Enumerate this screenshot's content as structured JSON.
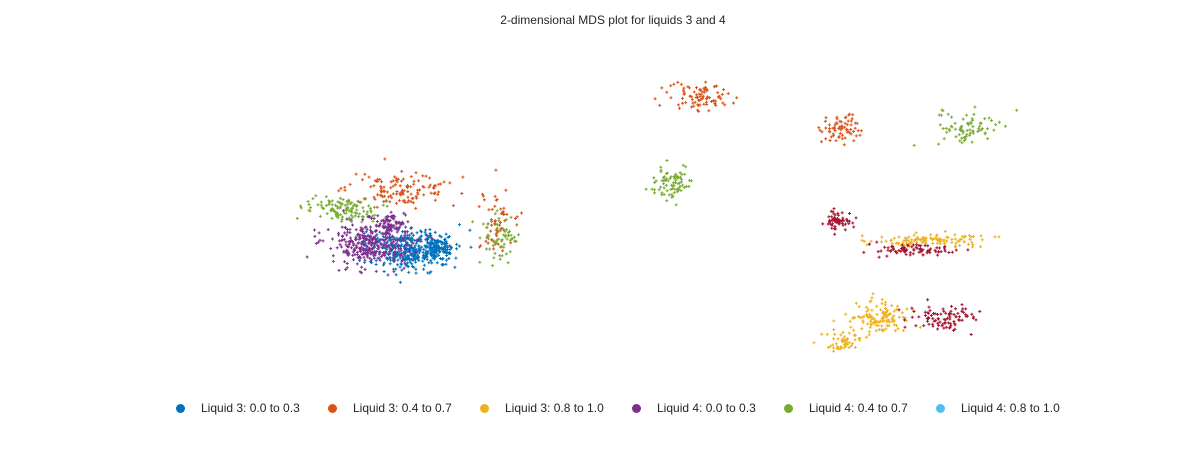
{
  "chart_data": {
    "type": "scatter",
    "title": "2-dimensional MDS plot for liquids 3 and 4",
    "xlabel": "",
    "ylabel": "",
    "grid": false,
    "axes_visible": false,
    "legend_position": "bottom",
    "series": [
      {
        "name": "Liquid 3: 0.0 to 0.3",
        "color": "#0072BD",
        "marker": "+",
        "clusters": [
          {
            "center": [
              410,
              250
            ],
            "spread": [
              40,
              18
            ],
            "n": 380
          },
          {
            "center": [
              438,
              245
            ],
            "spread": [
              14,
              10
            ],
            "n": 90
          }
        ]
      },
      {
        "name": "Liquid 3: 0.4 to 0.7",
        "color": "#D95319",
        "marker": "+",
        "clusters": [
          {
            "center": [
              400,
              190
            ],
            "spread": [
              48,
              14
            ],
            "n": 130
          },
          {
            "center": [
              498,
              225
            ],
            "spread": [
              20,
              35
            ],
            "n": 60
          },
          {
            "center": [
              700,
              97
            ],
            "spread": [
              28,
              14
            ],
            "n": 90
          },
          {
            "center": [
              838,
              128
            ],
            "spread": [
              18,
              13
            ],
            "n": 70
          }
        ]
      },
      {
        "name": "Liquid 3: 0.8 to 1.0",
        "color": "#EDB120",
        "marker": "+",
        "clusters": [
          {
            "center": [
              930,
              240
            ],
            "spread": [
              55,
              6
            ],
            "n": 110
          },
          {
            "center": [
              880,
              318
            ],
            "spread": [
              28,
              14
            ],
            "n": 120
          },
          {
            "center": [
              845,
              342
            ],
            "spread": [
              15,
              8
            ],
            "n": 50
          }
        ]
      },
      {
        "name": "Liquid 4: 0.0 to 0.3",
        "color": "#7E2F8E",
        "marker": "+",
        "clusters": [
          {
            "center": [
              370,
              243
            ],
            "spread": [
              38,
              20
            ],
            "n": 320
          },
          {
            "center": [
              390,
              225
            ],
            "spread": [
              15,
              10
            ],
            "n": 70
          }
        ]
      },
      {
        "name": "Liquid 4: 0.4 to 0.7",
        "color": "#77AC30",
        "marker": "+",
        "clusters": [
          {
            "center": [
              340,
              208
            ],
            "spread": [
              30,
              12
            ],
            "n": 120
          },
          {
            "center": [
              500,
              240
            ],
            "spread": [
              15,
              22
            ],
            "n": 60
          },
          {
            "center": [
              672,
              184
            ],
            "spread": [
              18,
              18
            ],
            "n": 80
          },
          {
            "center": [
              970,
              128
            ],
            "spread": [
              30,
              15
            ],
            "n": 80
          }
        ]
      },
      {
        "name": "Liquid 4: 0.8 to 1.0",
        "color": "#4DBEEE",
        "marker": "+",
        "clusters": []
      },
      {
        "name": "",
        "color": "#A2142F",
        "marker": "+",
        "in_legend": false,
        "clusters": [
          {
            "center": [
              838,
              222
            ],
            "spread": [
              12,
              9
            ],
            "n": 60
          },
          {
            "center": [
              910,
              250
            ],
            "spread": [
              40,
              6
            ],
            "n": 80
          },
          {
            "center": [
              945,
              318
            ],
            "spread": [
              30,
              11
            ],
            "n": 90
          }
        ]
      }
    ]
  }
}
